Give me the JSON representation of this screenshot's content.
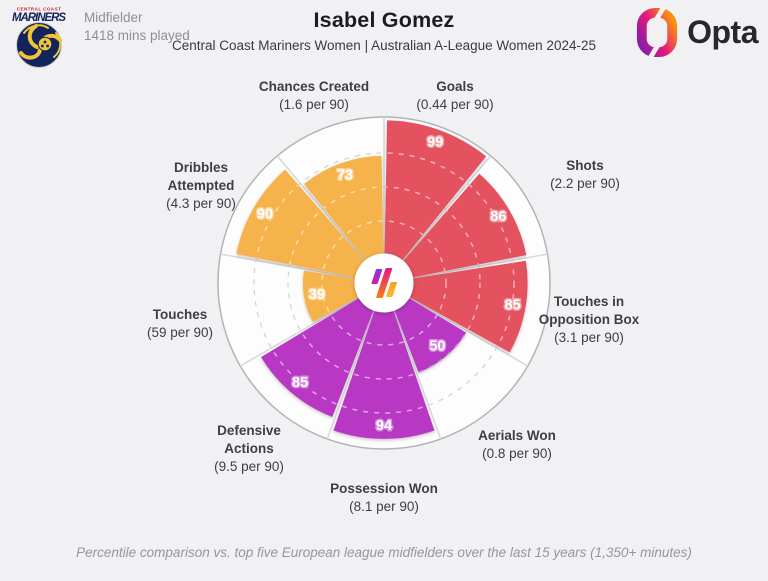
{
  "header": {
    "club_badge": {
      "name": "Central Coast Mariners crest",
      "title_top": "CENTRAL COAST",
      "title_main": "MARINERS"
    },
    "position": "Midfielder",
    "minutes_played": "1418 mins played",
    "player_name": "Isabel Gomez",
    "competition_line": "Central Coast Mariners Women | Australian A-League Women 2024-25",
    "brand_name": "Opta"
  },
  "footer": {
    "caption": "Percentile comparison vs. top five European league midfielders over the last 15 years (1,350+ minutes)"
  },
  "chart_data": {
    "type": "pizza (polar percentile bar)",
    "max": 100,
    "gridlines": [
      25,
      50,
      75
    ],
    "start_angle_deg": 0,
    "direction": "clockwise",
    "slices": [
      {
        "label": "Goals",
        "stat": "(0.44 per 90)",
        "value": 99,
        "color": "#e4515f",
        "label_outline": "#f2a0a7"
      },
      {
        "label": "Shots",
        "stat": "(2.2 per 90)",
        "value": 86,
        "color": "#e4515f",
        "label_outline": "#f2a0a7"
      },
      {
        "label": "Touches in Opposition Box",
        "stat": "(3.1 per 90)",
        "value": 85,
        "color": "#e4515f",
        "label_outline": "#f2a0a7"
      },
      {
        "label": "Aerials Won",
        "stat": "(0.8 per 90)",
        "value": 50,
        "color": "#b838c3",
        "label_outline": "#d78ce0"
      },
      {
        "label": "Possession Won",
        "stat": "(8.1 per 90)",
        "value": 94,
        "color": "#b838c3",
        "label_outline": "#d78ce0"
      },
      {
        "label": "Defensive Actions",
        "stat": "(9.5 per 90)",
        "value": 85,
        "color": "#b838c3",
        "label_outline": "#d78ce0"
      },
      {
        "label": "Touches",
        "stat": "(59 per 90)",
        "value": 39,
        "color": "#f6b24b",
        "label_outline": "#fad598"
      },
      {
        "label": "Dribbles Attempted",
        "stat": "(4.3 per 90)",
        "value": 90,
        "color": "#f6b24b",
        "label_outline": "#fad598"
      },
      {
        "label": "Chances Created",
        "stat": "(1.6 per 90)",
        "value": 73,
        "color": "#f6b24b",
        "label_outline": "#fad598"
      }
    ],
    "hub_logo": "opta-slashes-icon",
    "colors": {
      "background": "#f1f1f3",
      "plot_fill": "#fdfdfe",
      "outer_ring": "#b3b3b7",
      "grid": "#d4d4d8"
    }
  }
}
